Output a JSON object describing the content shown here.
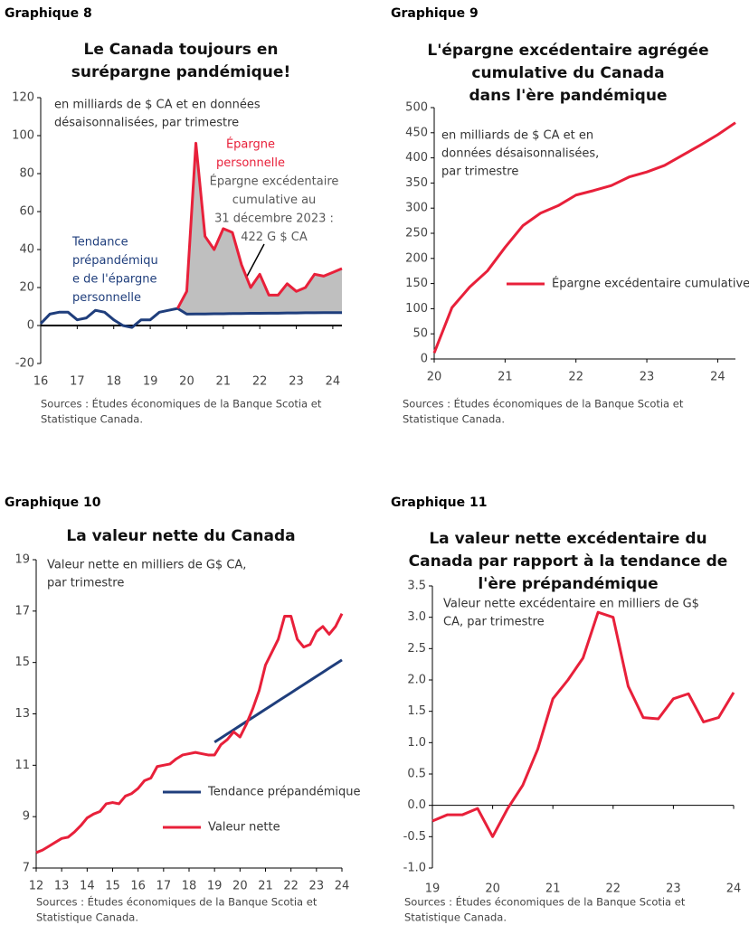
{
  "chart_data": [
    {
      "type": "line",
      "label": "Graphique 8",
      "title": [
        "Le Canada toujours en",
        "surépargne pandémique!"
      ],
      "note": [
        "en milliards de $ CA et en données",
        "désaisonnalisées, par trimestre"
      ],
      "xlim": [
        16,
        24.25
      ],
      "xticks": [
        16,
        17,
        18,
        19,
        20,
        21,
        22,
        23,
        24
      ],
      "ylim": [
        -20,
        120
      ],
      "yticks": [
        120,
        100,
        80,
        60,
        40,
        20,
        0,
        -20
      ],
      "area_between": [
        1,
        0
      ],
      "area_color": "#bfbfbf",
      "series": [
        {
          "color": "#1f3e7c",
          "x": [
            16,
            16.25,
            16.5,
            16.75,
            17,
            17.25,
            17.5,
            17.75,
            18,
            18.25,
            18.5,
            18.75,
            19,
            19.25,
            19.5,
            19.75,
            20,
            20.25,
            20.5,
            20.75,
            21,
            21.25,
            21.5,
            21.75,
            22,
            22.25,
            22.5,
            22.75,
            23,
            23.25,
            23.5,
            23.75,
            24,
            24.25
          ],
          "values": [
            1,
            6,
            7,
            7,
            3,
            4,
            8,
            7,
            3,
            0,
            -1,
            3,
            3,
            7,
            8,
            9,
            6.0,
            6.1,
            6.1,
            6.2,
            6.2,
            6.3,
            6.3,
            6.4,
            6.4,
            6.5,
            6.5,
            6.6,
            6.6,
            6.7,
            6.7,
            6.8,
            6.8,
            6.8
          ]
        },
        {
          "color": "#e8203a",
          "x": [
            19.75,
            20,
            20.25,
            20.5,
            20.75,
            21,
            21.25,
            21.5,
            21.75,
            22,
            22.25,
            22.5,
            22.75,
            23,
            23.25,
            23.5,
            23.75,
            24,
            24.25
          ],
          "values": [
            9,
            18,
            96,
            47,
            40,
            51,
            49,
            32,
            20,
            27,
            16,
            16,
            22,
            18,
            20,
            27,
            26,
            28,
            30
          ]
        }
      ],
      "annotations": [
        {
          "lines": [
            "Épargne",
            "personnelle"
          ],
          "color": "#e8203a"
        },
        {
          "lines": [
            "Épargne excédentaire",
            "cumulative au",
            "31 décembre 2023 :",
            "422 G $ CA"
          ],
          "color": "#595959"
        },
        {
          "lines": [
            "Tendance",
            "prépandémiqu",
            "e de l'épargne",
            "personnelle"
          ],
          "color": "#1f3e7c"
        }
      ],
      "sources": [
        "Sources : Études économiques de la Banque Scotia et",
        "Statistique Canada."
      ]
    },
    {
      "type": "line",
      "label": "Graphique 9",
      "title": [
        "L'épargne excédentaire agrégée",
        "cumulative du Canada",
        "dans l'ère pandémique"
      ],
      "note": [
        "en milliards de $ CA et en",
        "données désaisonnalisées,",
        "par trimestre"
      ],
      "xlim": [
        20,
        24.25
      ],
      "xticks": [
        20,
        21,
        22,
        23,
        24
      ],
      "ylim": [
        0,
        500
      ],
      "yticks": [
        500,
        450,
        400,
        350,
        300,
        250,
        200,
        150,
        100,
        50,
        0
      ],
      "legend": true,
      "series": [
        {
          "name": "Épargne excédentaire cumulative",
          "color": "#e8203a",
          "x": [
            20,
            20.25,
            20.5,
            20.75,
            21,
            21.25,
            21.5,
            21.75,
            22,
            22.25,
            22.5,
            22.75,
            23,
            23.25,
            23.5,
            23.75,
            24,
            24.25
          ],
          "values": [
            12,
            102,
            143,
            175,
            222,
            265,
            290,
            305,
            326,
            335,
            345,
            362,
            372,
            385,
            405,
            425,
            446,
            470
          ]
        }
      ],
      "sources": [
        "Sources : Études économiques de la Banque Scotia et",
        "Statistique Canada."
      ]
    },
    {
      "type": "line",
      "label": "Graphique 10",
      "title": [
        "La valeur nette du Canada"
      ],
      "note": [
        "Valeur nette en milliers de G$ CA,",
        "par trimestre"
      ],
      "xlim": [
        12,
        24
      ],
      "xticks": [
        12,
        13,
        14,
        15,
        16,
        17,
        18,
        19,
        20,
        21,
        22,
        23,
        24
      ],
      "ylim": [
        7,
        19
      ],
      "yticks": [
        19,
        17,
        15,
        13,
        11,
        9,
        7
      ],
      "legend": true,
      "series": [
        {
          "name": "Tendance prépandémique",
          "color": "#1f3e7c",
          "x": [
            19,
            19.25,
            19.5,
            19.75,
            20,
            20.25,
            20.5,
            20.75,
            21,
            21.25,
            21.5,
            21.75,
            22,
            22.25,
            22.5,
            22.75,
            23,
            23.25,
            23.5,
            23.75,
            24
          ],
          "values": [
            11.9,
            12.06,
            12.22,
            12.38,
            12.54,
            12.7,
            12.86,
            13.02,
            13.18,
            13.34,
            13.5,
            13.66,
            13.82,
            13.98,
            14.14,
            14.3,
            14.46,
            14.62,
            14.78,
            14.94,
            15.1
          ]
        },
        {
          "name": "Valeur nette",
          "color": "#e8203a",
          "x": [
            12,
            12.25,
            12.5,
            12.75,
            13,
            13.25,
            13.5,
            13.75,
            14,
            14.25,
            14.5,
            14.75,
            15,
            15.25,
            15.5,
            15.75,
            16,
            16.25,
            16.5,
            16.75,
            17,
            17.25,
            17.5,
            17.75,
            18,
            18.25,
            18.5,
            18.75,
            19,
            19.25,
            19.5,
            19.75,
            20,
            20.25,
            20.5,
            20.75,
            21,
            21.25,
            21.5,
            21.75,
            22,
            22.25,
            22.5,
            22.75,
            23,
            23.25,
            23.5,
            23.75,
            24
          ],
          "values": [
            7.6,
            7.7,
            7.85,
            8.0,
            8.15,
            8.2,
            8.4,
            8.65,
            8.95,
            9.1,
            9.2,
            9.5,
            9.55,
            9.5,
            9.8,
            9.9,
            10.1,
            10.4,
            10.5,
            10.95,
            11.0,
            11.05,
            11.25,
            11.4,
            11.45,
            11.5,
            11.45,
            11.4,
            11.4,
            11.8,
            12.0,
            12.3,
            12.1,
            12.6,
            13.2,
            13.9,
            14.9,
            15.4,
            15.9,
            16.8,
            16.8,
            15.9,
            15.6,
            15.7,
            16.2,
            16.4,
            16.1,
            16.4,
            16.9
          ]
        }
      ],
      "sources": [
        "Sources : Études économiques de la Banque Scotia et",
        "Statistique Canada."
      ]
    },
    {
      "type": "line",
      "label": "Graphique 11",
      "title": [
        "La valeur nette excédentaire du",
        "Canada par rapport à la tendance de",
        "l'ère prépandémique"
      ],
      "note": [
        "Valeur nette excédentaire en milliers de G$",
        "CA, par trimestre"
      ],
      "xlim": [
        19,
        24
      ],
      "xticks": [
        19,
        20,
        21,
        22,
        23,
        24
      ],
      "ylim": [
        -1,
        3.5
      ],
      "yticks": [
        {
          "value": 3.5,
          "label": "3.5"
        },
        {
          "value": 3,
          "label": "3.0"
        },
        {
          "value": 2.5,
          "label": "2.5"
        },
        {
          "value": 2,
          "label": "2.0"
        },
        {
          "value": 1.5,
          "label": "1.5"
        },
        {
          "value": 1,
          "label": "1.0"
        },
        {
          "value": 0.5,
          "label": "0.5"
        },
        {
          "value": 0,
          "label": "0.0"
        },
        {
          "value": -0.5,
          "label": "-0.5"
        },
        {
          "value": -1,
          "label": "-1.0"
        }
      ],
      "series": [
        {
          "color": "#e8203a",
          "x": [
            19,
            19.25,
            19.5,
            19.75,
            20,
            20.25,
            20.5,
            20.75,
            21,
            21.25,
            21.5,
            21.75,
            22,
            22.25,
            22.5,
            22.75,
            23,
            23.25,
            23.5,
            23.75,
            24
          ],
          "values": [
            -0.25,
            -0.15,
            -0.15,
            -0.05,
            -0.5,
            -0.05,
            0.32,
            0.9,
            1.7,
            2.0,
            2.35,
            3.08,
            3.0,
            1.9,
            1.4,
            1.38,
            1.7,
            1.78,
            1.33,
            1.4,
            1.8
          ]
        }
      ],
      "sources": [
        "Sources : Études économiques de la Banque Scotia et",
        "Statistique Canada."
      ]
    }
  ]
}
